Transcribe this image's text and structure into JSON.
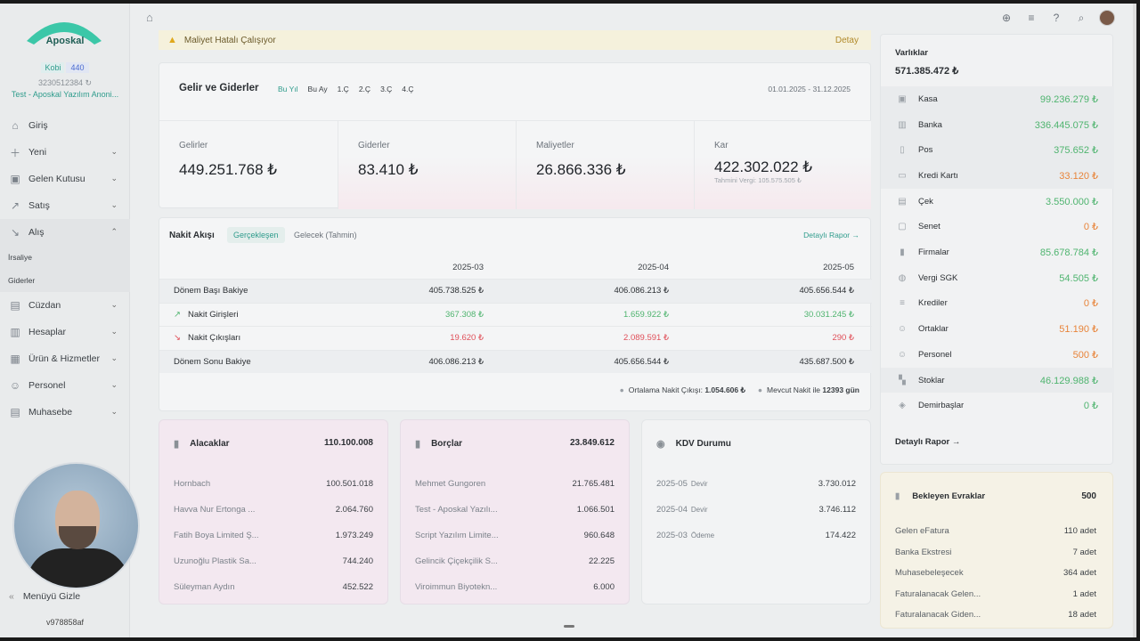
{
  "sidebar": {
    "brand": "Aposkal",
    "plan": "Kobi",
    "plan_count": "440",
    "tax_no": "3230512384",
    "company": "Test - Aposkal Yazılım Anoni...",
    "items": [
      {
        "label": "Giriş",
        "icon": "home-icon"
      },
      {
        "label": "Yeni",
        "icon": "plus-icon"
      },
      {
        "label": "Gelen Kutusu",
        "icon": "inbox-icon"
      },
      {
        "label": "Satış",
        "icon": "trend-up-icon"
      },
      {
        "label": "Alış",
        "icon": "trend-down-icon"
      },
      {
        "label": "Cüzdan",
        "icon": "wallet-icon"
      },
      {
        "label": "Hesaplar",
        "icon": "ledger-icon"
      },
      {
        "label": "Ürün & Hizmetler",
        "icon": "box-icon"
      },
      {
        "label": "Personel",
        "icon": "people-icon"
      },
      {
        "label": "Muhasebe",
        "icon": "book-icon"
      }
    ],
    "sub_items": [
      "İrsaliye",
      "Giderler"
    ],
    "hide_menu": "Menüyü Gizle",
    "version": "v978858af"
  },
  "alert": {
    "text": "Maliyet Hatalı Çalışıyor",
    "action": "Detay"
  },
  "income": {
    "title": "Gelir ve Giderler",
    "filters": [
      "Bu Yıl",
      "Bu Ay",
      "1.Ç",
      "2.Ç",
      "3.Ç",
      "4.Ç"
    ],
    "date_range": "01.01.2025 - 31.12.2025",
    "kpis": [
      {
        "label": "Gelirler",
        "value": "449.251.768 ₺"
      },
      {
        "label": "Giderler",
        "value": "83.410 ₺"
      },
      {
        "label": "Maliyetler",
        "value": "26.866.336 ₺"
      },
      {
        "label": "Kar",
        "value": "422.302.022 ₺",
        "sub": "Tahmini Vergi: 105.575.505 ₺"
      }
    ]
  },
  "cashflow": {
    "title": "Nakit Akışı",
    "tab_actual": "Gerçekleşen",
    "tab_forecast": "Gelecek (Tahmin)",
    "detail_link": "Detaylı Rapor →",
    "columns": [
      "2025-03",
      "2025-04",
      "2025-05"
    ],
    "rows": [
      {
        "label": "Dönem Başı Bakiye",
        "values": [
          "405.738.525 ₺",
          "406.086.213 ₺",
          "405.656.544 ₺"
        ]
      },
      {
        "label": "Nakit Girişleri",
        "values": [
          "367.308 ₺",
          "1.659.922 ₺",
          "30.031.245 ₺"
        ]
      },
      {
        "label": "Nakit Çıkışları",
        "values": [
          "19.620 ₺",
          "2.089.591 ₺",
          "290 ₺"
        ]
      },
      {
        "label": "Dönem Sonu Bakiye",
        "values": [
          "406.086.213 ₺",
          "405.656.544 ₺",
          "435.687.500 ₺"
        ]
      }
    ],
    "avg_label": "Ortalama Nakit Çıkışı:",
    "avg_value": "1.054.606 ₺",
    "days_label": "Mevcut Nakit ile",
    "days_value": "12393 gün"
  },
  "receivables": {
    "title": "Alacaklar",
    "total": "110.100.008",
    "rows": [
      {
        "name": "Hornbach",
        "value": "100.501.018"
      },
      {
        "name": "Havva Nur Ertonga ...",
        "value": "2.064.760"
      },
      {
        "name": "Fatih Boya Limited Ş...",
        "value": "1.973.249"
      },
      {
        "name": "Uzunoğlu Plastik Sa...",
        "value": "744.240"
      },
      {
        "name": "Süleyman Aydın",
        "value": "452.522"
      }
    ]
  },
  "payables": {
    "title": "Borçlar",
    "total": "23.849.612",
    "rows": [
      {
        "name": "Mehmet Gungoren",
        "value": "21.765.481"
      },
      {
        "name": "Test - Aposkal Yazılı...",
        "value": "1.066.501"
      },
      {
        "name": "Script Yazılım Limite...",
        "value": "960.648"
      },
      {
        "name": "Gelincik Çiçekçilik S...",
        "value": "22.225"
      },
      {
        "name": "Viroimmun Biyotekn...",
        "value": "6.000"
      }
    ]
  },
  "kdv": {
    "title": "KDV Durumu",
    "rows": [
      {
        "name": "2025-05",
        "tag": "Devir",
        "value": "3.730.012"
      },
      {
        "name": "2025-04",
        "tag": "Devir",
        "value": "3.746.112"
      },
      {
        "name": "2025-03",
        "tag": "Ödeme",
        "value": "174.422"
      }
    ]
  },
  "assets": {
    "title": "Varlıklar",
    "total": "571.385.472 ₺",
    "rows": [
      {
        "label": "Kasa",
        "value": "99.236.279 ₺",
        "tone": "green",
        "icon": "cash-icon"
      },
      {
        "label": "Banka",
        "value": "336.445.075 ₺",
        "tone": "green",
        "icon": "bank-icon"
      },
      {
        "label": "Pos",
        "value": "375.652 ₺",
        "tone": "green",
        "icon": "pos-icon"
      },
      {
        "label": "Kredi Kartı",
        "value": "33.120 ₺",
        "tone": "orange",
        "icon": "credit-card-icon"
      },
      {
        "label": "Çek",
        "value": "3.550.000 ₺",
        "tone": "green",
        "icon": "cheque-icon"
      },
      {
        "label": "Senet",
        "value": "0 ₺",
        "tone": "orange",
        "icon": "note-icon"
      },
      {
        "label": "Firmalar",
        "value": "85.678.784 ₺",
        "tone": "green",
        "icon": "building-icon"
      },
      {
        "label": "Vergi SGK",
        "value": "54.505 ₺",
        "tone": "green",
        "icon": "tax-icon"
      },
      {
        "label": "Krediler",
        "value": "0 ₺",
        "tone": "orange",
        "icon": "list-icon"
      },
      {
        "label": "Ortaklar",
        "value": "51.190 ₺",
        "tone": "orange",
        "icon": "partners-icon"
      },
      {
        "label": "Personel",
        "value": "500 ₺",
        "tone": "orange",
        "icon": "people-icon"
      },
      {
        "label": "Stoklar",
        "value": "46.129.988 ₺",
        "tone": "green",
        "icon": "stock-icon"
      },
      {
        "label": "Demirbaşlar",
        "value": "0 ₺",
        "tone": "green",
        "icon": "asset-icon"
      }
    ],
    "detail_link": "Detaylı Rapor →"
  },
  "pending": {
    "title": "Bekleyen Evraklar",
    "total": "500",
    "rows": [
      {
        "name": "Gelen eFatura",
        "value": "110 adet"
      },
      {
        "name": "Banka Ekstresi",
        "value": "7 adet"
      },
      {
        "name": "Muhasebeleşecek",
        "value": "364 adet"
      },
      {
        "name": "Faturalanacak Gelen...",
        "value": "1 adet"
      },
      {
        "name": "Faturalanacak Giden...",
        "value": "18 adet"
      }
    ]
  },
  "colors": {
    "accent": "#2f9c8c",
    "green": "#4fb46f",
    "red": "#e0505a",
    "orange": "#e8843a"
  }
}
